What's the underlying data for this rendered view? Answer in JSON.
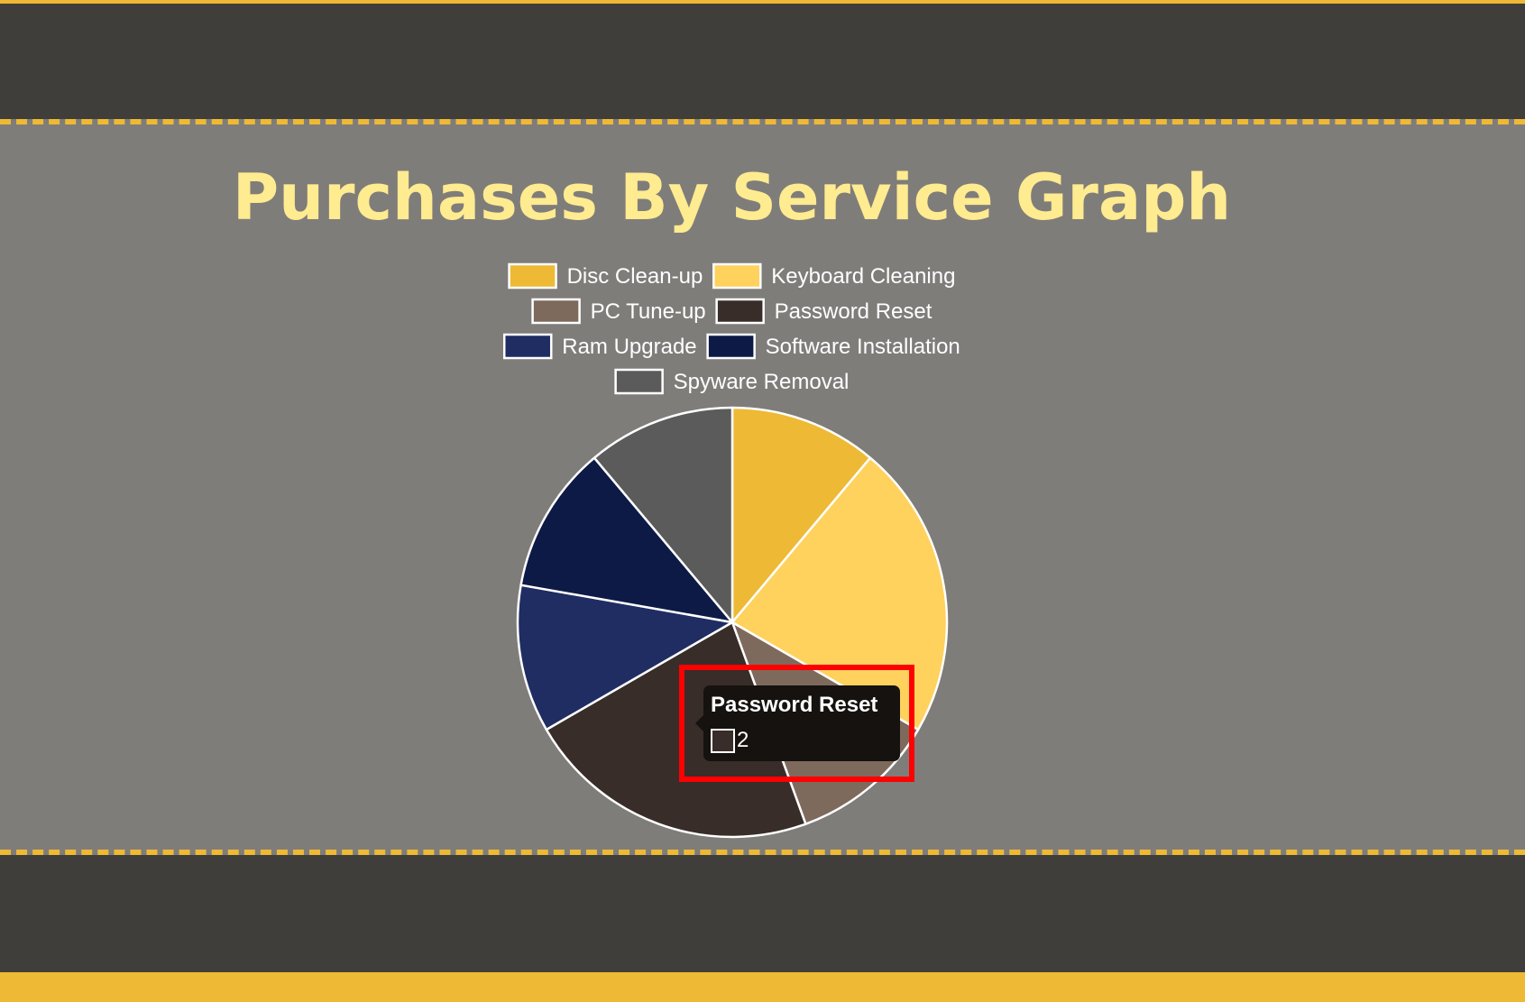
{
  "colors": {
    "accent": "#eeb935",
    "dark": "#403e3a",
    "main_bg": "#7f7d7a",
    "title": "#ffeb90",
    "highlight": "#ff0000",
    "tooltip_bg": "#15120f"
  },
  "chart_data": {
    "type": "pie",
    "title": "Purchases By Service Graph",
    "legend_position": "top",
    "categories": [
      "Disc Clean-up",
      "Keyboard Cleaning",
      "PC Tune-up",
      "Password Reset",
      "Ram Upgrade",
      "Software Installation",
      "Spyware Removal"
    ],
    "values": [
      1,
      2,
      1,
      2,
      1,
      1,
      1
    ],
    "colors": [
      "#eeb935",
      "#ffd15d",
      "#7e6a5c",
      "#382d28",
      "#202d62",
      "#0d1a46",
      "#5b5b5b"
    ],
    "tooltip": {
      "label": "Password Reset",
      "value": "2"
    }
  }
}
